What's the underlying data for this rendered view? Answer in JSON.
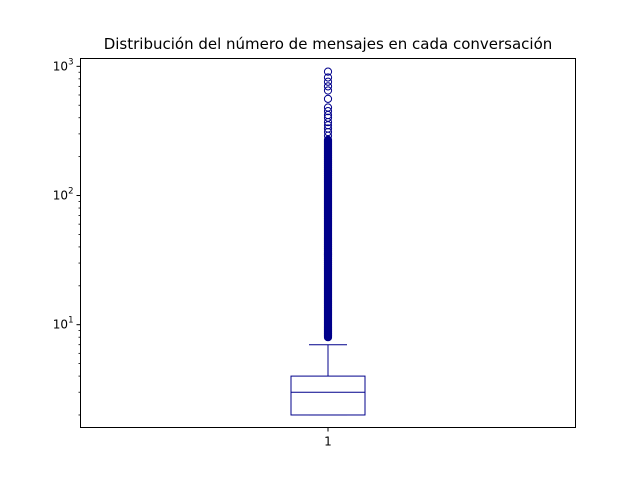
{
  "chart_data": {
    "type": "box",
    "title": "Distribución del número de mensajes en cada conversación",
    "xlabel": "",
    "ylabel": "",
    "yscale": "log",
    "ylim": [
      1.6,
      1150
    ],
    "categories": [
      "1"
    ],
    "yticks": [
      {
        "value": 10,
        "base": "10",
        "exp": "1"
      },
      {
        "value": 100,
        "base": "10",
        "exp": "2"
      },
      {
        "value": 1000,
        "base": "10",
        "exp": "3"
      }
    ],
    "box": {
      "category": "1",
      "whisker_low": 2,
      "q1": 2,
      "median": 3,
      "q3": 4,
      "whisker_high": 7
    },
    "outlier_summary": {
      "dense_range": [
        8,
        270
      ],
      "sparse": [
        290,
        310,
        330,
        350,
        370,
        400,
        420,
        450,
        480,
        560,
        650,
        700,
        760,
        820,
        910
      ]
    },
    "color": "#00008b",
    "grid": false,
    "legend": "none"
  }
}
